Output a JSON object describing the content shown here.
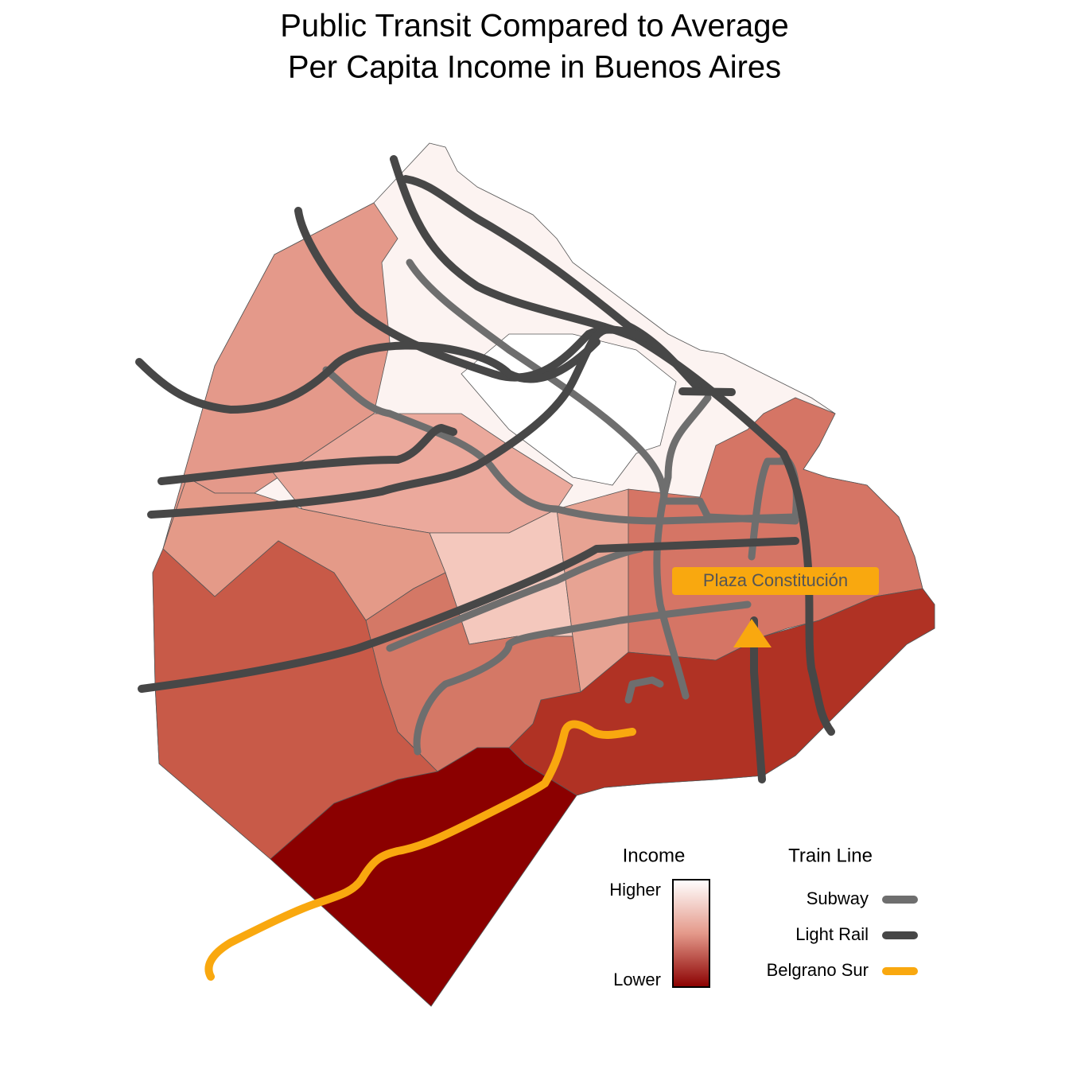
{
  "title": [
    "Public Transit Compared to Average",
    "Per Capita Income in Buenos Aires"
  ],
  "annotation": {
    "label": "Plaza Constitución",
    "color": "#f9a80f"
  },
  "legend": {
    "income": {
      "title": "Income",
      "high_label": "Higher",
      "low_label": "Lower",
      "high_color": "#ffffff",
      "mid_color": "#e4998a",
      "low_color": "#8b0000"
    },
    "train_line": {
      "title": "Train Line",
      "items": [
        {
          "name": "Subway",
          "color": "#6e6e6e"
        },
        {
          "name": "Light Rail",
          "color": "#474747"
        },
        {
          "name": "Belgrano Sur",
          "color": "#f9a80f"
        }
      ]
    }
  }
}
